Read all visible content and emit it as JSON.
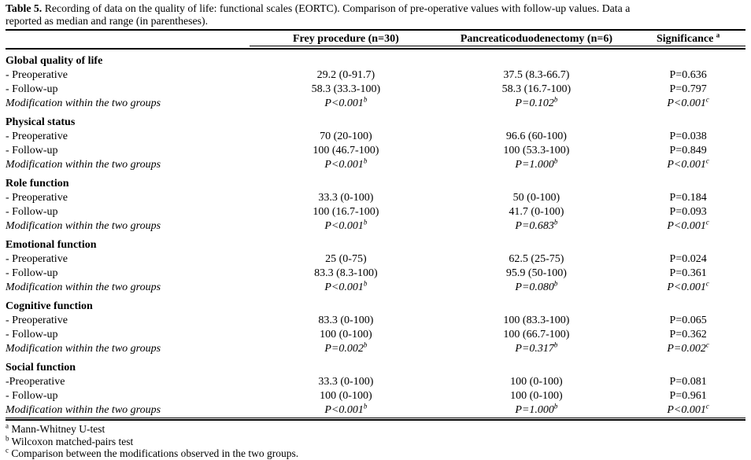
{
  "caption": {
    "label": "Table 5.",
    "line1_rest": "Recording of data on the quality of life: functional scales (EORTC). Comparison of pre-operative values with follow-up values. Data a",
    "line2": "reported as median and range (in parentheses)."
  },
  "header": {
    "col1": "",
    "col2": "Frey procedure (n=30)",
    "col3": "Pancreaticoduodenectomy (n=6)",
    "col4": "Significance",
    "col4_sup": "a"
  },
  "sections": [
    {
      "title": "Global quality of life",
      "rows": [
        {
          "label": "- Preoperative",
          "frey": "29.2 (0-91.7)",
          "pd": "37.5 (8.3-66.7)",
          "sig": "P=0.636",
          "italic": false
        },
        {
          "label": "- Follow-up",
          "frey": "58.3 (33.3-100)",
          "pd": "58.3 (16.7-100)",
          "sig": "P=0.797",
          "italic": false
        },
        {
          "label": "Modification within the two groups",
          "frey": "P<0.001",
          "frey_sup": "b",
          "pd": "P=0.102",
          "pd_sup": "b",
          "sig": "P<0.001",
          "sig_sup": "c",
          "italic": true
        }
      ]
    },
    {
      "title": "Physical status",
      "rows": [
        {
          "label": "- Preoperative",
          "frey": "70 (20-100)",
          "pd": "96.6 (60-100)",
          "sig": "P=0.038",
          "italic": false
        },
        {
          "label": "- Follow-up",
          "frey": "100 (46.7-100)",
          "pd": "100 (53.3-100)",
          "sig": "P=0.849",
          "italic": false
        },
        {
          "label": "Modification within the two groups",
          "frey": "P<0.001",
          "frey_sup": "b",
          "pd": "P=1.000",
          "pd_sup": "b",
          "sig": "P<0.001",
          "sig_sup": "c",
          "italic": true
        }
      ]
    },
    {
      "title": "Role function",
      "rows": [
        {
          "label": "- Preoperative",
          "frey": "33.3 (0-100)",
          "pd": "50 (0-100)",
          "sig": "P=0.184",
          "italic": false
        },
        {
          "label": "- Follow-up",
          "frey": "100 (16.7-100)",
          "pd": "41.7 (0-100)",
          "sig": "P=0.093",
          "italic": false
        },
        {
          "label": "Modification within the two groups",
          "frey": "P<0.001",
          "frey_sup": "b",
          "pd": "P=0.683",
          "pd_sup": "b",
          "sig": "P<0.001",
          "sig_sup": "c",
          "italic": true
        }
      ]
    },
    {
      "title": "Emotional function",
      "rows": [
        {
          "label": "- Preoperative",
          "frey": "25 (0-75)",
          "pd": "62.5 (25-75)",
          "sig": "P=0.024",
          "italic": false
        },
        {
          "label": "- Follow-up",
          "frey": "83.3 (8.3-100)",
          "pd": "95.9 (50-100)",
          "sig": "P=0.361",
          "italic": false
        },
        {
          "label": "Modification within the two groups",
          "frey": "P<0.001",
          "frey_sup": "b",
          "pd": "P=0.080",
          "pd_sup": "b",
          "sig": "P<0.001",
          "sig_sup": "c",
          "italic": true
        }
      ]
    },
    {
      "title": "Cognitive function",
      "rows": [
        {
          "label": "- Preoperative",
          "frey": "83.3 (0-100)",
          "pd": "100 (83.3-100)",
          "sig": "P=0.065",
          "italic": false
        },
        {
          "label": "- Follow-up",
          "frey": "100 (0-100)",
          "pd": "100 (66.7-100)",
          "sig": "P=0.362",
          "italic": false
        },
        {
          "label": "Modification within the two groups",
          "frey": "P=0.002",
          "frey_sup": "b",
          "pd": "P=0.317",
          "pd_sup": "b",
          "sig": "P=0.002",
          "sig_sup": "c",
          "italic": true
        }
      ]
    },
    {
      "title": "Social function",
      "rows": [
        {
          "label": "-Preoperative",
          "frey": "33.3 (0-100)",
          "pd": "100 (0-100)",
          "sig": "P=0.081",
          "italic": false
        },
        {
          "label": "- Follow-up",
          "frey": "100 (0-100)",
          "pd": "100 (0-100)",
          "sig": "P=0.961",
          "italic": false
        },
        {
          "label": "Modification within the two groups",
          "frey": "P<0.001",
          "frey_sup": "b",
          "pd": "P=1.000",
          "pd_sup": "b",
          "sig": "P<0.001",
          "sig_sup": "c",
          "italic": true
        }
      ]
    }
  ],
  "footnotes": [
    {
      "sup": "a",
      "text": "Mann-Whitney U-test"
    },
    {
      "sup": "b",
      "text": "Wilcoxon matched-pairs test"
    },
    {
      "sup": "c",
      "text": "Comparison between the modifications observed in the two groups."
    }
  ]
}
